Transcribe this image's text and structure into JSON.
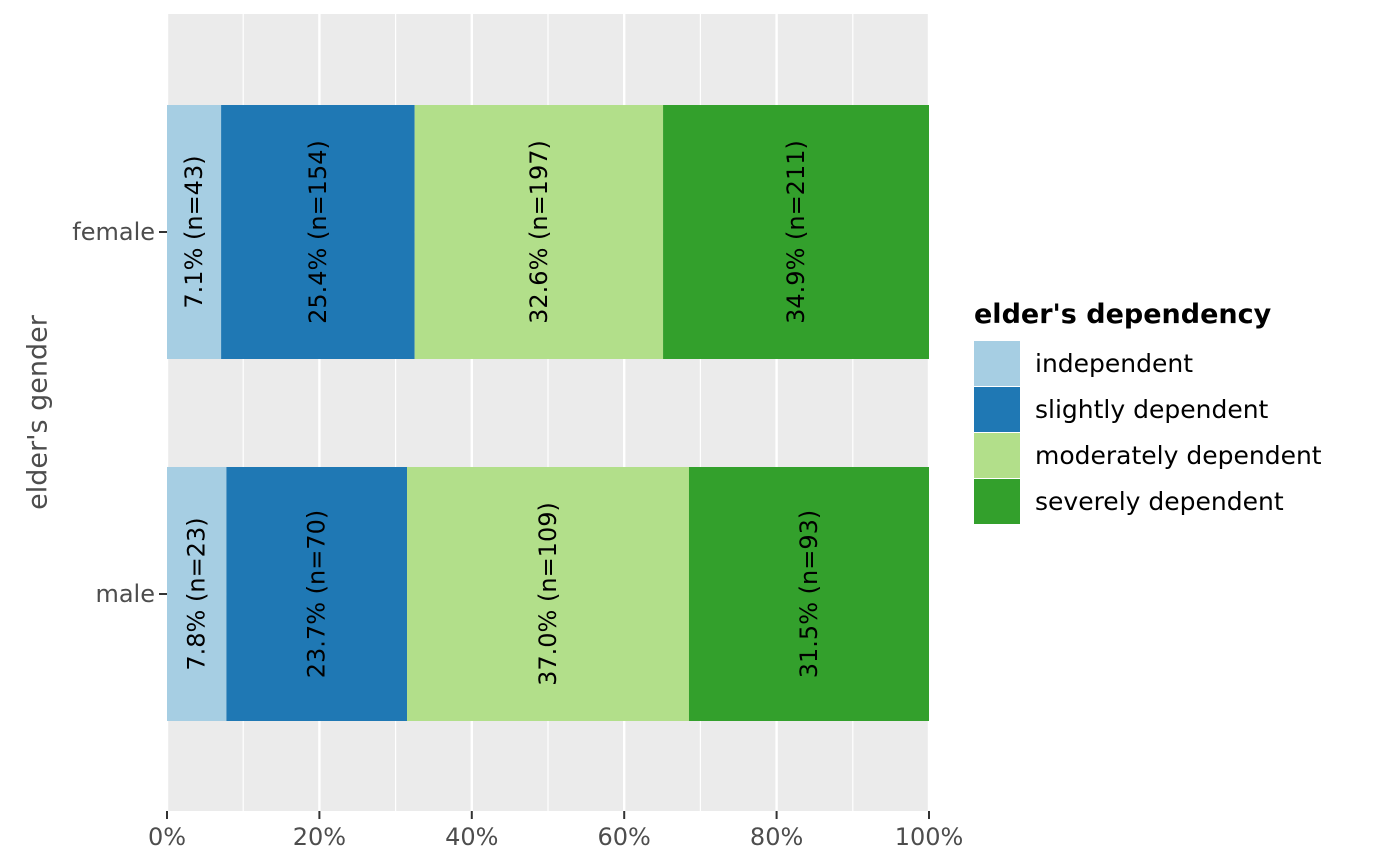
{
  "chart_data": {
    "type": "bar",
    "orientation": "horizontal",
    "stacked": "percent",
    "categories": [
      "female",
      "male"
    ],
    "series": [
      {
        "name": "independent",
        "color": "#a6cee3",
        "values": [
          7.1,
          7.8
        ],
        "counts": [
          43,
          23
        ],
        "labels": [
          "7.1% (n=43)",
          "7.8% (n=23)"
        ]
      },
      {
        "name": "slightly dependent",
        "color": "#1f78b4",
        "values": [
          25.4,
          23.7
        ],
        "counts": [
          154,
          70
        ],
        "labels": [
          "25.4% (n=154)",
          "23.7% (n=70)"
        ]
      },
      {
        "name": "moderately dependent",
        "color": "#b2df8a",
        "values": [
          32.6,
          37.0
        ],
        "counts": [
          197,
          109
        ],
        "labels": [
          "32.6% (n=197)",
          "37.0% (n=109)"
        ]
      },
      {
        "name": "severely dependent",
        "color": "#33a02c",
        "values": [
          34.9,
          31.5
        ],
        "counts": [
          211,
          93
        ],
        "labels": [
          "34.9% (n=211)",
          "31.5% (n=93)"
        ]
      }
    ],
    "xlim": [
      0,
      100
    ],
    "x_ticks": [
      0,
      20,
      40,
      60,
      80,
      100
    ],
    "x_tick_labels": [
      "0%",
      "20%",
      "40%",
      "60%",
      "80%",
      "100%"
    ],
    "xlabel": "",
    "ylabel": "elder's gender",
    "legend_title": "elder's dependency",
    "legend_position": "right",
    "grid": true,
    "panel_background": "#ebebeb"
  }
}
